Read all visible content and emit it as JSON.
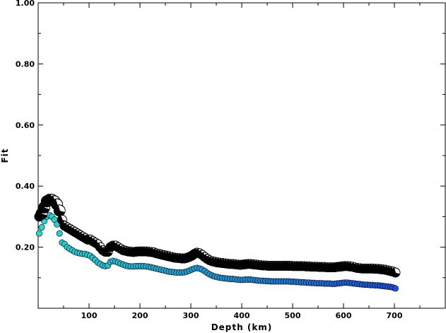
{
  "chart_data": {
    "type": "scatter",
    "title": "",
    "xlabel": "Depth (km)",
    "ylabel": "Fit",
    "xlim": [
      0,
      800
    ],
    "ylim": [
      0,
      1.0
    ],
    "xticks": [
      100,
      200,
      300,
      400,
      500,
      600,
      700
    ],
    "xtick_labels": [
      "100",
      "200",
      "300",
      "400",
      "500",
      "600",
      "700"
    ],
    "yticks": [
      0.2,
      0.4,
      0.6,
      0.8,
      1.0
    ],
    "ytick_labels": [
      "0.20",
      "0.40",
      "0.60",
      "0.80",
      "1.00"
    ],
    "grid": false,
    "legend": "none",
    "series": [
      {
        "marker": "mechanism-circle",
        "x": [
          2,
          7,
          12,
          17,
          22,
          27,
          32,
          37,
          42,
          47,
          52,
          57,
          62,
          67,
          72,
          77,
          82,
          87,
          92,
          97,
          102,
          107,
          112,
          117,
          122,
          127,
          132,
          137,
          142,
          147,
          152,
          157,
          162,
          167,
          172,
          177,
          182,
          187,
          192,
          197,
          202,
          207,
          212,
          217,
          222,
          227,
          232,
          237,
          242,
          247,
          252,
          257,
          262,
          267,
          272,
          277,
          282,
          287,
          292,
          297,
          302,
          307,
          312,
          317,
          322,
          327,
          332,
          337,
          342,
          347,
          352,
          357,
          362,
          367,
          372,
          377,
          382,
          387,
          392,
          397,
          402,
          407,
          412,
          417,
          422,
          427,
          432,
          437,
          442,
          447,
          452,
          457,
          462,
          467,
          472,
          477,
          482,
          487,
          492,
          497,
          502,
          507,
          512,
          517,
          522,
          527,
          532,
          537,
          542,
          547,
          552,
          557,
          562,
          567,
          572,
          577,
          582,
          587,
          592,
          597,
          602,
          607,
          612,
          617,
          622,
          627,
          632,
          637,
          642,
          647,
          652,
          657,
          662,
          667,
          672,
          677,
          682,
          687,
          692,
          697,
          702
        ],
        "y": [
          0.3,
          0.31,
          0.33,
          0.35,
          0.355,
          0.355,
          0.35,
          0.34,
          0.32,
          0.29,
          0.27,
          0.265,
          0.26,
          0.255,
          0.25,
          0.245,
          0.24,
          0.235,
          0.23,
          0.225,
          0.225,
          0.22,
          0.215,
          0.21,
          0.2,
          0.19,
          0.185,
          0.185,
          0.2,
          0.205,
          0.205,
          0.2,
          0.195,
          0.19,
          0.188,
          0.186,
          0.185,
          0.184,
          0.185,
          0.186,
          0.186,
          0.186,
          0.186,
          0.185,
          0.184,
          0.183,
          0.18,
          0.178,
          0.176,
          0.174,
          0.172,
          0.17,
          0.168,
          0.166,
          0.165,
          0.164,
          0.163,
          0.163,
          0.165,
          0.168,
          0.172,
          0.178,
          0.182,
          0.18,
          0.175,
          0.168,
          0.162,
          0.157,
          0.154,
          0.152,
          0.15,
          0.149,
          0.148,
          0.147,
          0.146,
          0.145,
          0.145,
          0.144,
          0.143,
          0.142,
          0.143,
          0.144,
          0.145,
          0.145,
          0.144,
          0.143,
          0.142,
          0.141,
          0.14,
          0.14,
          0.139,
          0.139,
          0.139,
          0.139,
          0.139,
          0.139,
          0.139,
          0.139,
          0.139,
          0.139,
          0.138,
          0.138,
          0.138,
          0.138,
          0.138,
          0.137,
          0.137,
          0.136,
          0.136,
          0.136,
          0.135,
          0.135,
          0.135,
          0.134,
          0.134,
          0.134,
          0.134,
          0.135,
          0.136,
          0.137,
          0.138,
          0.138,
          0.137,
          0.136,
          0.134,
          0.132,
          0.131,
          0.13,
          0.13,
          0.13,
          0.13,
          0.13,
          0.129,
          0.129,
          0.128,
          0.127,
          0.126,
          0.124,
          0.122,
          0.12,
          0.117
        ],
        "fill": "#000000",
        "stroke": "#000000"
      },
      {
        "marker": "filled-circle",
        "x": [
          2,
          7,
          12,
          17,
          22,
          27,
          32,
          37,
          42,
          47,
          52,
          57,
          62,
          67,
          72,
          77,
          82,
          87,
          92,
          97,
          102,
          107,
          112,
          117,
          122,
          127,
          132,
          137,
          142,
          147,
          152,
          157,
          162,
          167,
          172,
          177,
          182,
          187,
          192,
          197,
          202,
          207,
          212,
          217,
          222,
          227,
          232,
          237,
          242,
          247,
          252,
          257,
          262,
          267,
          272,
          277,
          282,
          287,
          292,
          297,
          302,
          307,
          312,
          317,
          322,
          327,
          332,
          337,
          342,
          347,
          352,
          357,
          362,
          367,
          372,
          377,
          382,
          387,
          392,
          397,
          402,
          407,
          412,
          417,
          422,
          427,
          432,
          437,
          442,
          447,
          452,
          457,
          462,
          467,
          472,
          477,
          482,
          487,
          492,
          497,
          502,
          507,
          512,
          517,
          522,
          527,
          532,
          537,
          542,
          547,
          552,
          557,
          562,
          567,
          572,
          577,
          582,
          587,
          592,
          597,
          602,
          607,
          612,
          617,
          622,
          627,
          632,
          637,
          642,
          647,
          652,
          657,
          662,
          667,
          672,
          677,
          682,
          687,
          692,
          697,
          702
        ],
        "y": [
          0.245,
          0.265,
          0.285,
          0.3,
          0.305,
          0.3,
          0.29,
          0.275,
          0.245,
          0.215,
          0.21,
          0.2,
          0.195,
          0.19,
          0.185,
          0.182,
          0.18,
          0.178,
          0.178,
          0.175,
          0.172,
          0.165,
          0.158,
          0.15,
          0.145,
          0.14,
          0.138,
          0.14,
          0.152,
          0.155,
          0.153,
          0.15,
          0.146,
          0.143,
          0.14,
          0.138,
          0.137,
          0.137,
          0.138,
          0.138,
          0.138,
          0.138,
          0.137,
          0.136,
          0.134,
          0.132,
          0.13,
          0.128,
          0.126,
          0.124,
          0.122,
          0.12,
          0.119,
          0.118,
          0.117,
          0.117,
          0.117,
          0.118,
          0.12,
          0.123,
          0.127,
          0.13,
          0.132,
          0.13,
          0.127,
          0.122,
          0.116,
          0.111,
          0.107,
          0.104,
          0.102,
          0.1,
          0.099,
          0.098,
          0.097,
          0.096,
          0.096,
          0.095,
          0.094,
          0.093,
          0.093,
          0.094,
          0.094,
          0.094,
          0.093,
          0.092,
          0.091,
          0.09,
          0.09,
          0.089,
          0.089,
          0.088,
          0.088,
          0.088,
          0.088,
          0.088,
          0.088,
          0.088,
          0.088,
          0.087,
          0.087,
          0.086,
          0.086,
          0.085,
          0.085,
          0.084,
          0.084,
          0.083,
          0.083,
          0.082,
          0.082,
          0.082,
          0.081,
          0.081,
          0.081,
          0.08,
          0.08,
          0.081,
          0.082,
          0.083,
          0.084,
          0.084,
          0.083,
          0.082,
          0.081,
          0.08,
          0.079,
          0.078,
          0.077,
          0.077,
          0.076,
          0.076,
          0.075,
          0.075,
          0.074,
          0.073,
          0.072,
          0.071,
          0.07,
          0.068,
          0.065
        ],
        "color_start": "#28d6d0",
        "color_end": "#1c4fd8"
      }
    ]
  }
}
